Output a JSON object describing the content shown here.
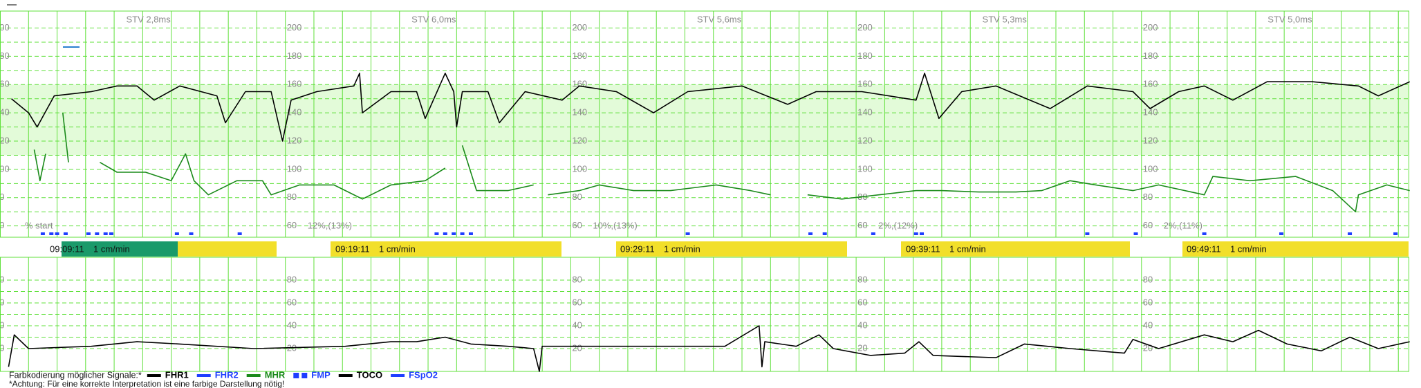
{
  "chart_data": [
    {
      "type": "line",
      "ylim": [
        52,
        212
      ],
      "yticks": [
        60,
        80,
        100,
        120,
        140,
        160,
        180,
        200
      ],
      "xlim": [
        0,
        49.8
      ],
      "normal_band": [
        110,
        160
      ],
      "series": [
        {
          "color": "#000000",
          "x": [
            0.4,
            1.0,
            1.3,
            1.9,
            3.2,
            4.1,
            4.8,
            5.4,
            6.3,
            7.6,
            7.9,
            8.6,
            9.5,
            9.9,
            10.2,
            11.1,
            12.4,
            12.6,
            12.7,
            13.7,
            14.6,
            14.9,
            15.6,
            15.9,
            16.0,
            16.2,
            17.1,
            17.5,
            18.4,
            19.7,
            20.3,
            21.6,
            22.9,
            24.1,
            26.0,
            27.6,
            28.6,
            30.2,
            32.1,
            32.4,
            32.9,
            33.7,
            34.9,
            36.8,
            38.1,
            39.7,
            40.3,
            41.3,
            42.2,
            43.2,
            44.4,
            46.0,
            47.6,
            48.3,
            49.4
          ],
          "values": [
            150,
            140,
            130,
            152,
            155,
            159,
            159,
            149,
            159,
            152,
            133,
            155,
            155,
            120,
            149,
            155,
            159,
            168,
            140,
            155,
            155,
            136,
            168,
            155,
            130,
            155,
            155,
            133,
            155,
            149,
            159,
            155,
            140,
            155,
            159,
            146,
            155,
            155,
            149,
            168,
            136,
            155,
            159,
            143,
            159,
            155,
            143,
            155,
            159,
            149,
            162,
            162,
            159,
            152,
            162
          ]
        },
        {
          "color": "#1a8a1a",
          "x": [
            1.2,
            1.4,
            1.6,
            1.9,
            2.2,
            2.4,
            3.0,
            3.5,
            4.1,
            5.1,
            6.0,
            6.5,
            6.8,
            7.3,
            8.3,
            9.2,
            9.5,
            10.5,
            11.7,
            12.7,
            13.7,
            14.9,
            15.6,
            15.9,
            16.2,
            16.7,
            17.8,
            18.7,
            19.0,
            19.2,
            20.3,
            21.0,
            22.2,
            23.5,
            25.1,
            26.3,
            27.0,
            27.5,
            28.3,
            29.5,
            30.8,
            32.1,
            33.0,
            34.3,
            35.6,
            36.5,
            37.5,
            38.4,
            39.7,
            40.6,
            42.2,
            42.5,
            43.8,
            45.4,
            46.7,
            47.5,
            47.6,
            48.6,
            49.4
          ],
          "values": [
            114,
            92,
            111,
            null,
            140,
            105,
            null,
            105,
            98,
            98,
            92,
            111,
            92,
            82,
            92,
            92,
            82,
            89,
            89,
            79,
            89,
            92,
            101,
            null,
            117,
            85,
            85,
            89,
            null,
            82,
            85,
            89,
            85,
            85,
            89,
            85,
            82,
            null,
            82,
            79,
            82,
            85,
            85,
            84,
            84,
            85,
            92,
            89,
            85,
            89,
            82,
            95,
            92,
            95,
            85,
            70,
            82,
            89,
            85
          ]
        }
      ],
      "fmp": [
        1.5,
        1.8,
        2.0,
        2.3,
        3.1,
        3.4,
        3.7,
        3.9,
        6.2,
        6.7,
        8.4,
        15.3,
        15.6,
        15.9,
        16.2,
        16.5,
        24.1,
        28.4,
        28.9,
        30.6,
        32.1,
        32.3,
        38.1,
        39.8,
        42.2,
        44.9,
        47.3,
        48.9
      ],
      "stv": [
        "STV 2,8ms",
        "STV 6,0ms",
        "STV 5,6ms",
        "STV 5,3ms",
        "STV 5,0ms"
      ],
      "percent": [
        "% start",
        "12%,(13%)",
        "10%,(13%)",
        "2%,(12%)",
        "2%,(11%)"
      ],
      "timestamps": [
        {
          "time": "09:09:11",
          "speed": "1 cm/min"
        },
        {
          "time": "09:19:11",
          "speed": "1 cm/min"
        },
        {
          "time": "09:29:11",
          "speed": "1 cm/min"
        },
        {
          "time": "09:39:11",
          "speed": "1 cm/min"
        },
        {
          "time": "09:49:11",
          "speed": "1 cm/min"
        }
      ]
    },
    {
      "type": "line",
      "ylim": [
        0,
        100
      ],
      "yticks": [
        20,
        40,
        60,
        80
      ],
      "xlim": [
        0,
        49.8
      ],
      "series": [
        {
          "color": "#000000",
          "x": [
            0.3,
            0.5,
            1.0,
            3.2,
            4.8,
            6.3,
            8.9,
            12.1,
            13.7,
            14.6,
            15.6,
            16.5,
            17.8,
            18.7,
            18.9,
            19.0,
            22.2,
            25.4,
            26.6,
            26.7,
            26.8,
            27.9,
            28.7,
            29.2,
            30.5,
            31.7,
            32.2,
            32.7,
            34.9,
            35.9,
            37.5,
            39.4,
            39.7,
            40.6,
            42.2,
            43.2,
            44.1,
            45.1,
            46.3,
            47.3,
            48.3,
            49.4
          ],
          "values": [
            4,
            32,
            20,
            22,
            26,
            24,
            20,
            22,
            26,
            26,
            30,
            24,
            22,
            20,
            0,
            22,
            22,
            22,
            40,
            4,
            26,
            22,
            32,
            20,
            14,
            16,
            26,
            14,
            12,
            24,
            20,
            16,
            28,
            20,
            32,
            26,
            36,
            24,
            18,
            30,
            20,
            26
          ]
        }
      ]
    }
  ],
  "legend": {
    "title": "Farbkodierung möglicher Signale:*",
    "items": [
      {
        "name": "FHR1",
        "color": "#000000",
        "style": "line"
      },
      {
        "name": "FHR2",
        "color": "#1f3fff",
        "style": "line"
      },
      {
        "name": "MHR",
        "color": "#1a8a1a",
        "style": "line"
      },
      {
        "name": "FMP",
        "color": "#1f3fff",
        "style": "squares"
      },
      {
        "name": "TOCO",
        "color": "#000000",
        "style": "line"
      },
      {
        "name": "FSpO2",
        "color": "#1f3fff",
        "style": "line"
      }
    ]
  },
  "note": "*Achtung: Für eine korrekte Interpretation ist eine farbige Darstellung nötig!"
}
